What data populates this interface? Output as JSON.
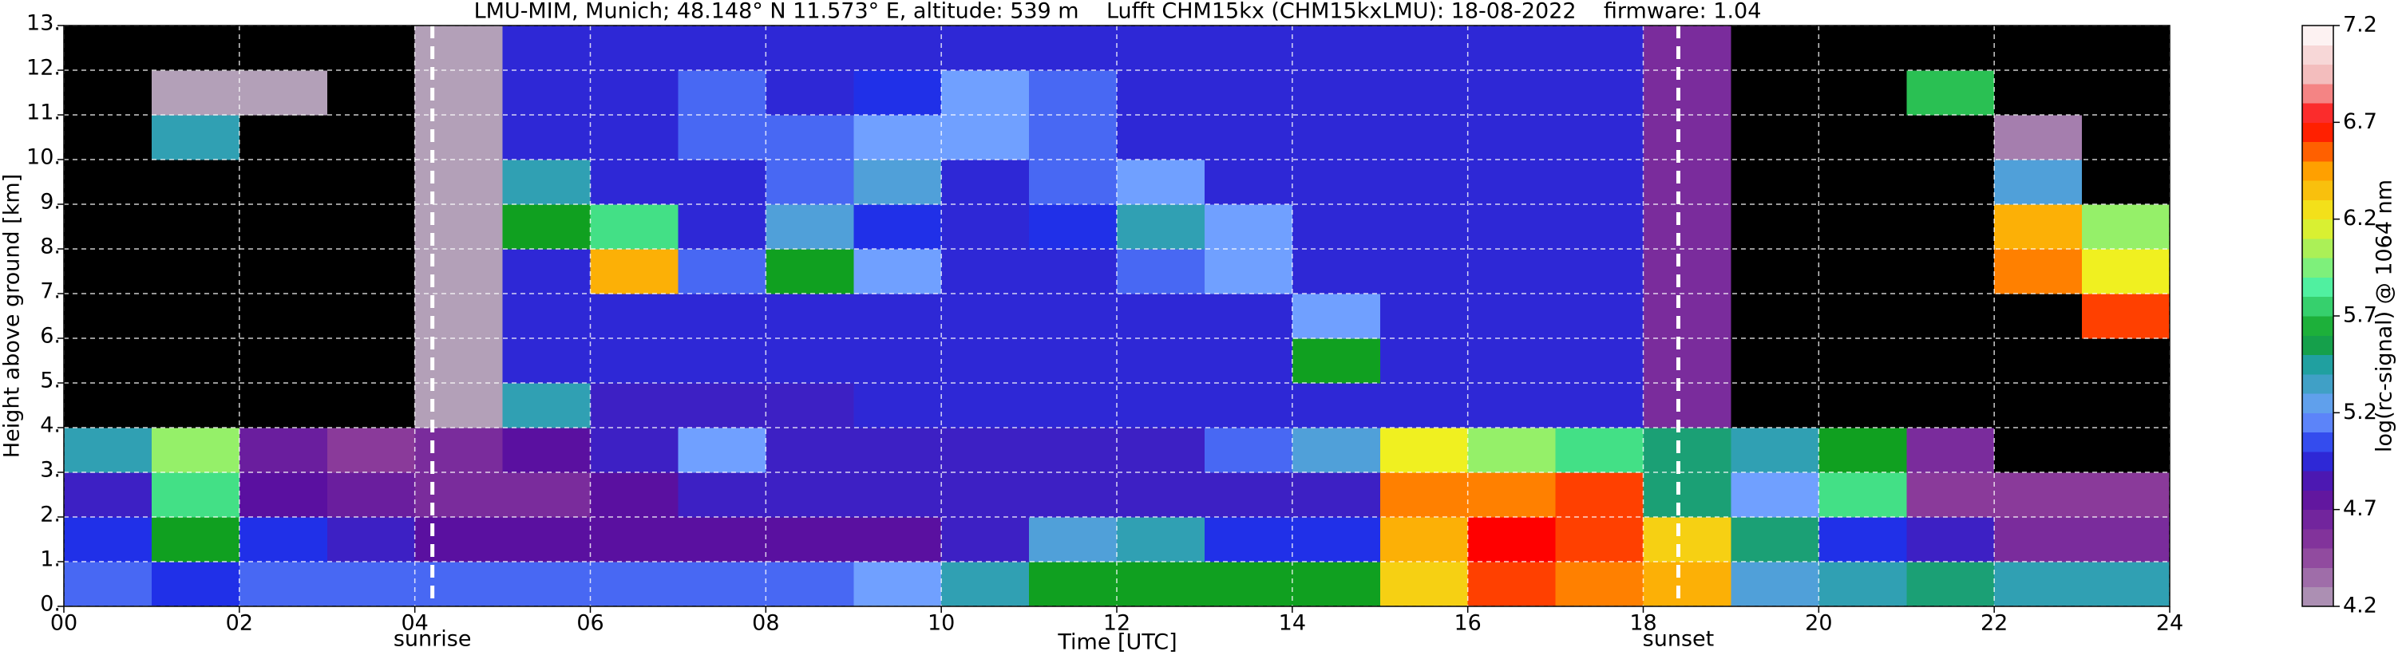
{
  "chart_data": {
    "type": "heatmap",
    "title": "LMU-MIM, Munich; 48.148° N 11.573° E, altitude: 539 m    Lufft CHM15kx (CHM15kxLMU): 18-08-2022    firmware: 1.04",
    "xlabel": "Time [UTC]",
    "ylabel": "Height above ground [km]",
    "colorbar_label": "log(rc-signal) @ 1064 nm",
    "xlim": [
      0,
      24
    ],
    "ylim": [
      0,
      13
    ],
    "xticks": [
      {
        "value": 0,
        "label": "00"
      },
      {
        "value": 2,
        "label": "02"
      },
      {
        "value": 4,
        "label": "04"
      },
      {
        "value": 6,
        "label": "06"
      },
      {
        "value": 8,
        "label": "08"
      },
      {
        "value": 10,
        "label": "10"
      },
      {
        "value": 12,
        "label": "12"
      },
      {
        "value": 14,
        "label": "14"
      },
      {
        "value": 16,
        "label": "16"
      },
      {
        "value": 18,
        "label": "18"
      },
      {
        "value": 20,
        "label": "20"
      },
      {
        "value": 22,
        "label": "22"
      },
      {
        "value": 24,
        "label": "24"
      }
    ],
    "yticks": [
      {
        "value": 0,
        "label": "0."
      },
      {
        "value": 1,
        "label": "1."
      },
      {
        "value": 2,
        "label": "2."
      },
      {
        "value": 3,
        "label": "3."
      },
      {
        "value": 4,
        "label": "4."
      },
      {
        "value": 5,
        "label": "5."
      },
      {
        "value": 6,
        "label": "6."
      },
      {
        "value": 7,
        "label": "7."
      },
      {
        "value": 8,
        "label": "8."
      },
      {
        "value": 9,
        "label": "9."
      },
      {
        "value": 10,
        "label": "10."
      },
      {
        "value": 11,
        "label": "11."
      },
      {
        "value": 12,
        "label": "12."
      },
      {
        "value": 13,
        "label": "13."
      }
    ],
    "grid": true,
    "clim": [
      4.2,
      7.2
    ],
    "cticks": [
      4.2,
      4.7,
      5.2,
      5.7,
      6.2,
      6.7,
      7.2
    ],
    "under_color": "#000000",
    "colorscale": [
      [
        4.2,
        "#b3a0b8"
      ],
      [
        4.5,
        "#8a3a9a"
      ],
      [
        4.8,
        "#5a10a0"
      ],
      [
        5.0,
        "#2030e8"
      ],
      [
        5.2,
        "#70a0ff"
      ],
      [
        5.45,
        "#20a0a0"
      ],
      [
        5.6,
        "#10a020"
      ],
      [
        5.85,
        "#50f0a0"
      ],
      [
        6.2,
        "#f0f020"
      ],
      [
        6.45,
        "#ffa000"
      ],
      [
        6.7,
        "#ff0000"
      ],
      [
        6.9,
        "#f0b0b0"
      ],
      [
        7.2,
        "#ffffff"
      ]
    ],
    "annotations": [
      {
        "x": 4.2,
        "label": "sunrise"
      },
      {
        "x": 18.4,
        "label": "sunset"
      }
    ],
    "xbins": [
      0,
      1,
      2,
      3,
      4,
      5,
      6,
      7,
      8,
      9,
      10,
      11,
      12,
      13,
      14,
      15,
      16,
      17,
      18,
      19,
      20,
      21,
      22,
      23,
      24
    ],
    "ybins": [
      0,
      1,
      2,
      3,
      4,
      5,
      6,
      7,
      8,
      9,
      10,
      11,
      12,
      13
    ],
    "z": [
      [
        5.1,
        5.0,
        5.1,
        5.1,
        5.1,
        5.1,
        5.1,
        5.1,
        5.1,
        5.2,
        5.4,
        5.6,
        5.6,
        5.6,
        5.6,
        6.3,
        6.6,
        6.5,
        6.4,
        5.3,
        5.4,
        5.5,
        5.4,
        5.4
      ],
      [
        5.0,
        5.6,
        5.0,
        4.9,
        4.8,
        4.8,
        4.8,
        4.8,
        4.8,
        4.8,
        4.9,
        5.3,
        5.4,
        5.0,
        5.0,
        6.4,
        6.7,
        6.6,
        6.3,
        5.5,
        5.0,
        4.9,
        4.6,
        4.6
      ],
      [
        4.9,
        5.8,
        4.8,
        4.7,
        4.6,
        4.6,
        4.8,
        4.9,
        4.9,
        4.9,
        4.9,
        4.9,
        4.9,
        4.9,
        4.9,
        6.5,
        6.5,
        6.6,
        5.5,
        5.2,
        5.8,
        4.5,
        4.5,
        4.5
      ],
      [
        5.4,
        6.0,
        4.7,
        4.5,
        4.6,
        4.8,
        4.9,
        5.2,
        4.9,
        4.9,
        4.9,
        4.9,
        4.9,
        5.1,
        5.3,
        6.2,
        6.0,
        5.8,
        5.5,
        5.4,
        5.6,
        4.6,
        4.0,
        4.0
      ],
      [
        4.0,
        4.1,
        4.0,
        4.0,
        4.2,
        5.4,
        4.9,
        4.9,
        4.9,
        4.95,
        4.95,
        4.95,
        4.95,
        4.95,
        4.95,
        4.95,
        4.95,
        4.95,
        4.6,
        4.0,
        4.0,
        4.0,
        4.0,
        4.0
      ],
      [
        4.0,
        4.0,
        4.0,
        4.0,
        4.2,
        4.95,
        4.95,
        4.95,
        4.95,
        4.95,
        4.95,
        4.95,
        4.95,
        4.95,
        5.6,
        4.95,
        4.95,
        4.95,
        4.6,
        4.0,
        4.0,
        4.0,
        4.0,
        4.0
      ],
      [
        4.0,
        4.0,
        4.0,
        4.0,
        4.2,
        4.95,
        4.95,
        4.95,
        4.95,
        4.95,
        4.95,
        4.95,
        4.95,
        4.95,
        5.2,
        4.95,
        4.95,
        4.95,
        4.6,
        4.0,
        4.0,
        4.0,
        4.0,
        6.6
      ],
      [
        4.0,
        4.0,
        4.0,
        4.0,
        4.2,
        4.95,
        6.4,
        5.1,
        5.6,
        5.2,
        4.95,
        4.95,
        5.1,
        5.2,
        4.95,
        4.95,
        4.95,
        4.95,
        4.6,
        4.0,
        4.0,
        4.0,
        6.5,
        6.2
      ],
      [
        4.0,
        4.0,
        4.0,
        4.0,
        4.2,
        5.6,
        5.8,
        4.95,
        5.3,
        5.0,
        4.95,
        5.0,
        5.4,
        5.2,
        4.95,
        4.95,
        4.95,
        4.95,
        4.6,
        4.0,
        4.0,
        4.0,
        6.4,
        6.0
      ],
      [
        4.0,
        4.0,
        4.0,
        4.0,
        4.2,
        5.4,
        4.95,
        4.95,
        5.1,
        5.3,
        4.95,
        5.1,
        5.2,
        4.95,
        4.95,
        4.95,
        4.95,
        4.95,
        4.6,
        4.0,
        4.0,
        4.0,
        5.3,
        4.0
      ],
      [
        4.0,
        5.4,
        4.0,
        4.0,
        4.2,
        4.95,
        4.95,
        5.1,
        5.1,
        5.2,
        5.2,
        5.1,
        4.95,
        4.95,
        4.95,
        4.95,
        4.95,
        4.95,
        4.6,
        4.0,
        4.0,
        4.0,
        4.3,
        4.0
      ],
      [
        4.0,
        4.2,
        4.2,
        4.0,
        4.2,
        4.95,
        4.95,
        5.1,
        4.95,
        5.0,
        5.2,
        5.1,
        4.95,
        4.95,
        4.95,
        4.95,
        4.95,
        4.95,
        4.6,
        4.0,
        4.0,
        5.7,
        4.0,
        4.0
      ],
      [
        4.0,
        4.0,
        4.0,
        4.0,
        4.2,
        4.95,
        4.95,
        4.95,
        4.95,
        4.95,
        4.95,
        4.95,
        4.95,
        4.95,
        4.95,
        4.95,
        4.95,
        4.95,
        4.6,
        4.0,
        4.0,
        4.0,
        4.0,
        4.0
      ]
    ]
  }
}
